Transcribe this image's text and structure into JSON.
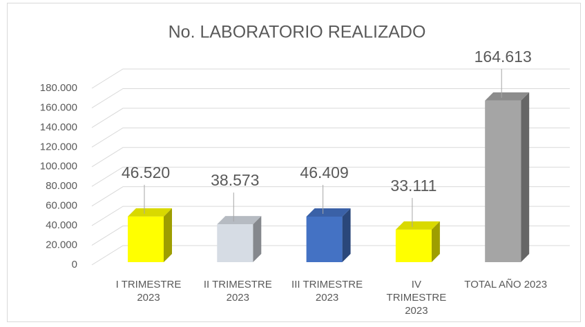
{
  "chart_data": {
    "type": "bar3d",
    "title": "No. LABORATORIO REALIZADO",
    "categories": [
      "I TRIMESTRE 2023",
      "II TRIMESTRE 2023",
      "III TRIMESTRE 2023",
      "IV TRIMESTRE 2023",
      "TOTAL AÑO 2023"
    ],
    "values": [
      46520,
      38573,
      46409,
      33111,
      164613
    ],
    "value_labels": [
      "46.520",
      "38.573",
      "46.409",
      "33.111",
      "164.613"
    ],
    "colors": [
      "#ffff00",
      "#d6dce4",
      "#4472c4",
      "#ffff00",
      "#a5a5a5"
    ],
    "ylim": [
      0,
      180000
    ],
    "yticks": [
      0,
      {
        "value": 20000,
        "label": "20.000"
      },
      {
        "value": 40000,
        "label": "40.000"
      },
      {
        "value": 60000,
        "label": "60.000"
      },
      {
        "value": 80000,
        "label": "80.000"
      },
      {
        "value": 100000,
        "label": "100.000"
      },
      {
        "value": 120000,
        "label": "120.000"
      },
      {
        "value": 140000,
        "label": "140.000"
      },
      {
        "value": 160000,
        "label": "160.000"
      },
      {
        "value": 180000,
        "label": "180.000"
      }
    ],
    "grid": true
  }
}
